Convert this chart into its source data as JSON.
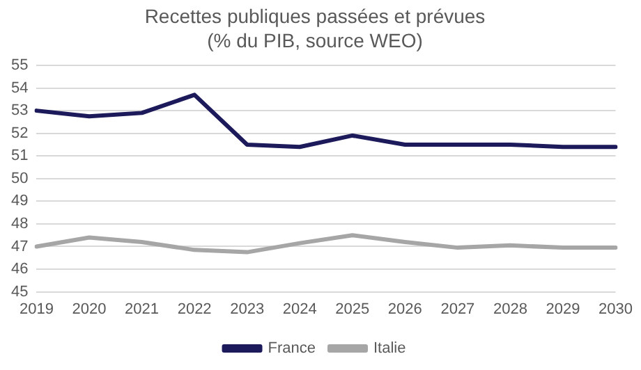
{
  "chart_data": {
    "type": "line",
    "title": [
      "Recettes publiques passées et prévues",
      "(% du PIB, source WEO)"
    ],
    "categories": [
      "2019",
      "2020",
      "2021",
      "2022",
      "2023",
      "2024",
      "2025",
      "2026",
      "2027",
      "2028",
      "2029",
      "2030"
    ],
    "series": [
      {
        "name": "France",
        "color": "#1c1a5a",
        "values": [
          53.0,
          52.75,
          52.9,
          53.7,
          51.5,
          51.4,
          51.9,
          51.5,
          51.5,
          51.5,
          51.4,
          51.4
        ]
      },
      {
        "name": "Italie",
        "color": "#a6a6a6",
        "values": [
          47.0,
          47.4,
          47.2,
          46.85,
          46.75,
          47.15,
          47.5,
          47.2,
          46.95,
          47.05,
          46.95,
          46.95
        ]
      }
    ],
    "ylim": [
      45,
      55
    ],
    "yticks": [
      45,
      46,
      47,
      48,
      49,
      50,
      51,
      52,
      53,
      54,
      55
    ],
    "grid": "y",
    "legend": "bottom",
    "marker": "none",
    "line_style": "solid"
  }
}
